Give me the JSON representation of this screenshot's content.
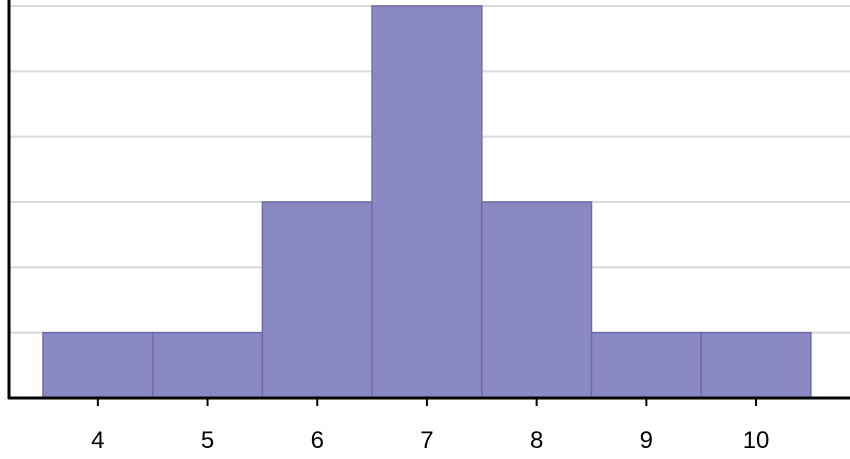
{
  "chart_data": {
    "type": "bar",
    "title": "",
    "xlabel": "",
    "ylabel": "",
    "categories": [
      "4",
      "5",
      "6",
      "7",
      "8",
      "9",
      "10"
    ],
    "values": [
      1,
      1,
      3,
      6,
      3,
      1,
      1
    ],
    "ylim": [
      0,
      6
    ],
    "grid": true,
    "y_tick_labels_visible": false,
    "bar_color": "#8b89c3",
    "bar_border_color": "#6f6ba6",
    "grid_color": "#d9d9d9",
    "axis_color": "#000000"
  }
}
